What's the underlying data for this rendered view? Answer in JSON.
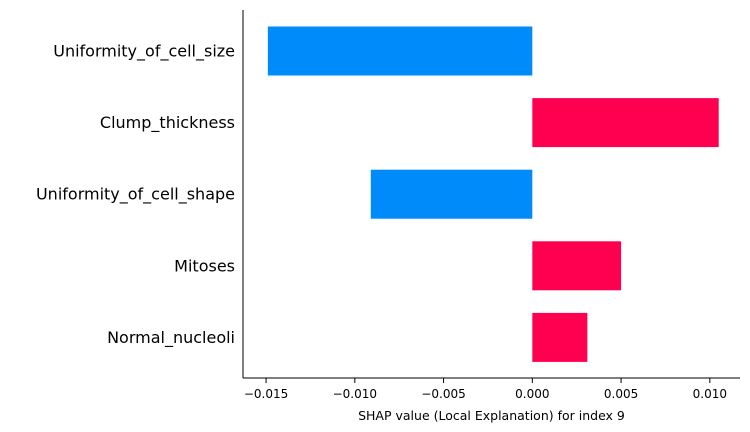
{
  "chart_data": {
    "type": "bar",
    "orientation": "horizontal",
    "categories": [
      "Uniformity_of_cell_size",
      "Clump_thickness",
      "Uniformity_of_cell_shape",
      "Mitoses",
      "Normal_nucleoli"
    ],
    "values": [
      -0.0149,
      0.0105,
      -0.0091,
      0.005,
      0.0031
    ],
    "xlabel": "SHAP value (Local Explanation) for index 9",
    "ylabel": "",
    "xlim": [
      -0.0163,
      0.0117
    ],
    "xticks": [
      -0.015,
      -0.01,
      -0.005,
      0.0,
      0.005,
      0.01
    ],
    "xtick_labels": [
      "−0.015",
      "−0.010",
      "−0.005",
      "0.000",
      "0.005",
      "0.010"
    ],
    "colors": {
      "positive": "#ff0051",
      "negative": "#008bfb"
    },
    "grid": false,
    "legend": "none"
  }
}
